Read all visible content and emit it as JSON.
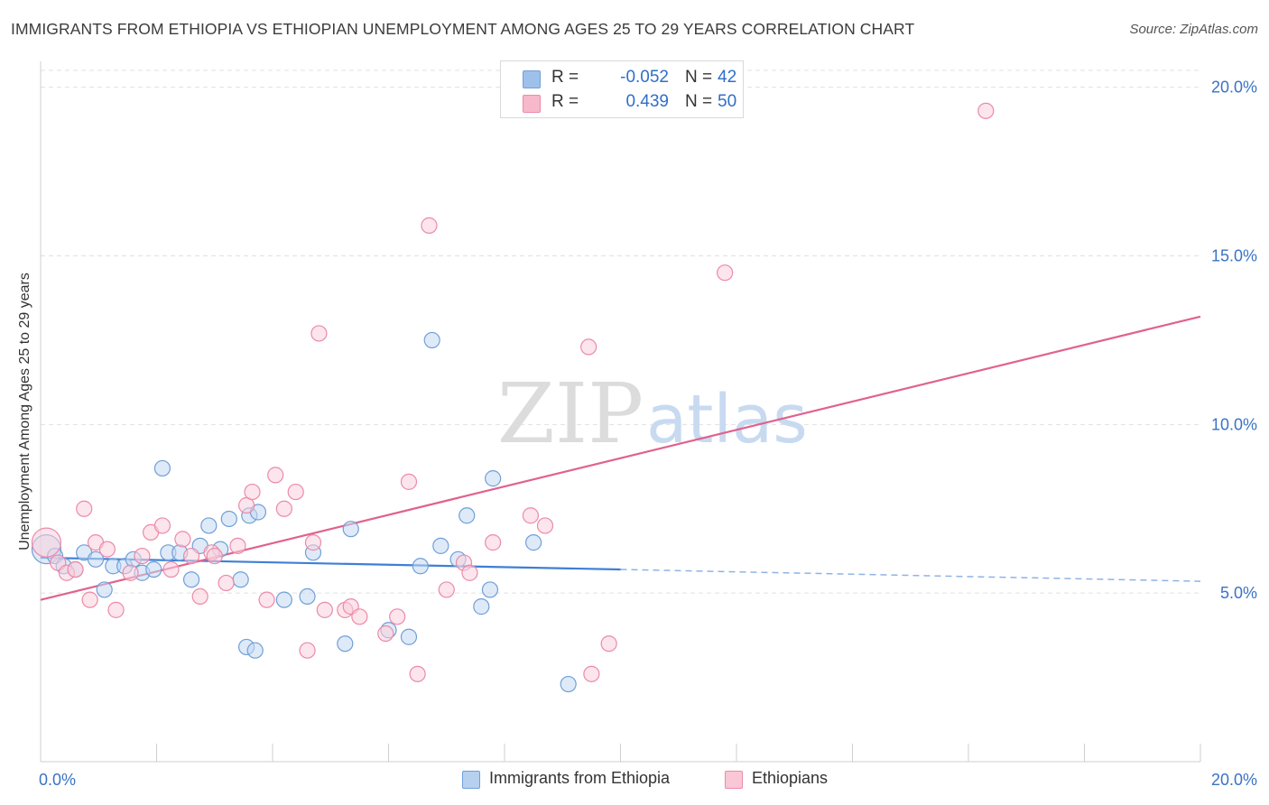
{
  "title": "IMMIGRANTS FROM ETHIOPIA VS ETHIOPIAN UNEMPLOYMENT AMONG AGES 25 TO 29 YEARS CORRELATION CHART",
  "source": "Source: ZipAtlas.com",
  "watermark": {
    "zip": "ZIP",
    "atlas": "atlas"
  },
  "legend": {
    "rows": [
      {
        "r_label": "R =",
        "r_value": "-0.052",
        "n_label": "N =",
        "n_value": "42",
        "color": "#9ec1ec",
        "border": "#6f9fd8"
      },
      {
        "r_label": "R =",
        "r_value": "0.439",
        "n_label": "N =",
        "n_value": "50",
        "color": "#f7b8cc",
        "border": "#ec8aa8"
      }
    ]
  },
  "bottom_legend": [
    {
      "label": "Immigrants from Ethiopia",
      "color": "#b6d0f0",
      "border": "#6f9fd8"
    },
    {
      "label": "Ethiopians",
      "color": "#f9c7d6",
      "border": "#ec8aa8"
    }
  ],
  "chart_data": {
    "type": "scatter",
    "title": "IMMIGRANTS FROM ETHIOPIA VS ETHIOPIAN UNEMPLOYMENT AMONG AGES 25 TO 29 YEARS CORRELATION CHART",
    "xlabel": "",
    "ylabel": "Unemployment Among Ages 25 to 29 years",
    "xlim": [
      0,
      20
    ],
    "ylim": [
      0,
      20.5
    ],
    "x_tick_labels": [
      "0.0%",
      "20.0%"
    ],
    "y_ticks": [
      5,
      10,
      15,
      20
    ],
    "y_tick_labels": [
      "5.0%",
      "10.0%",
      "15.0%",
      "20.0%"
    ],
    "grid": true,
    "series": [
      {
        "name": "Immigrants from Ethiopia",
        "color": "#6f9fd8",
        "fill": "#c4d9f3",
        "points": [
          [
            0.1,
            6.3
          ],
          [
            0.25,
            6.1
          ],
          [
            0.4,
            5.8
          ],
          [
            0.6,
            5.7
          ],
          [
            0.75,
            6.2
          ],
          [
            0.95,
            6.0
          ],
          [
            1.1,
            5.1
          ],
          [
            1.25,
            5.8
          ],
          [
            1.45,
            5.8
          ],
          [
            1.6,
            6.0
          ],
          [
            1.75,
            5.6
          ],
          [
            1.95,
            5.7
          ],
          [
            2.1,
            8.7
          ],
          [
            2.2,
            6.2
          ],
          [
            2.4,
            6.2
          ],
          [
            2.6,
            5.4
          ],
          [
            2.75,
            6.4
          ],
          [
            2.9,
            7.0
          ],
          [
            3.1,
            6.3
          ],
          [
            3.25,
            7.2
          ],
          [
            3.45,
            5.4
          ],
          [
            3.55,
            3.4
          ],
          [
            3.6,
            7.3
          ],
          [
            3.7,
            3.3
          ],
          [
            3.75,
            7.4
          ],
          [
            4.2,
            4.8
          ],
          [
            4.6,
            4.9
          ],
          [
            4.7,
            6.2
          ],
          [
            5.25,
            3.5
          ],
          [
            5.35,
            6.9
          ],
          [
            6.0,
            3.9
          ],
          [
            6.35,
            3.7
          ],
          [
            6.55,
            5.8
          ],
          [
            6.75,
            12.5
          ],
          [
            6.9,
            6.4
          ],
          [
            7.2,
            6.0
          ],
          [
            7.35,
            7.3
          ],
          [
            7.6,
            4.6
          ],
          [
            7.75,
            5.1
          ],
          [
            7.8,
            8.4
          ],
          [
            8.5,
            6.5
          ],
          [
            9.1,
            2.3
          ]
        ],
        "trend": {
          "solid_x": [
            0,
            10
          ],
          "dashed_x": [
            10,
            20
          ],
          "y_at_0": 6.05,
          "y_at_20": 5.35
        }
      },
      {
        "name": "Ethiopians",
        "color": "#ec8aa8",
        "fill": "#f9cfdc",
        "points": [
          [
            0.1,
            6.5
          ],
          [
            0.3,
            5.9
          ],
          [
            0.45,
            5.6
          ],
          [
            0.6,
            5.7
          ],
          [
            0.75,
            7.5
          ],
          [
            0.85,
            4.8
          ],
          [
            0.95,
            6.5
          ],
          [
            1.15,
            6.3
          ],
          [
            1.3,
            4.5
          ],
          [
            1.55,
            5.6
          ],
          [
            1.75,
            6.1
          ],
          [
            1.9,
            6.8
          ],
          [
            2.1,
            7.0
          ],
          [
            2.25,
            5.7
          ],
          [
            2.45,
            6.6
          ],
          [
            2.6,
            6.1
          ],
          [
            2.75,
            4.9
          ],
          [
            2.95,
            6.2
          ],
          [
            3.0,
            6.1
          ],
          [
            3.2,
            5.3
          ],
          [
            3.4,
            6.4
          ],
          [
            3.55,
            7.6
          ],
          [
            3.65,
            8.0
          ],
          [
            3.9,
            4.8
          ],
          [
            4.05,
            8.5
          ],
          [
            4.2,
            7.5
          ],
          [
            4.4,
            8.0
          ],
          [
            4.6,
            3.3
          ],
          [
            4.7,
            6.5
          ],
          [
            4.8,
            12.7
          ],
          [
            4.9,
            4.5
          ],
          [
            5.25,
            4.5
          ],
          [
            5.35,
            4.6
          ],
          [
            5.5,
            4.3
          ],
          [
            5.95,
            3.8
          ],
          [
            6.15,
            4.3
          ],
          [
            6.35,
            8.3
          ],
          [
            6.5,
            2.6
          ],
          [
            6.7,
            15.9
          ],
          [
            7.0,
            5.1
          ],
          [
            7.3,
            5.9
          ],
          [
            7.4,
            5.6
          ],
          [
            7.8,
            6.5
          ],
          [
            8.45,
            7.3
          ],
          [
            8.7,
            7.0
          ],
          [
            9.45,
            12.3
          ],
          [
            9.5,
            2.6
          ],
          [
            9.8,
            3.5
          ],
          [
            11.8,
            14.5
          ],
          [
            16.3,
            19.3
          ]
        ],
        "trend": {
          "solid_x": [
            0,
            20
          ],
          "y_at_0": 4.8,
          "y_at_20": 13.2
        }
      }
    ]
  }
}
